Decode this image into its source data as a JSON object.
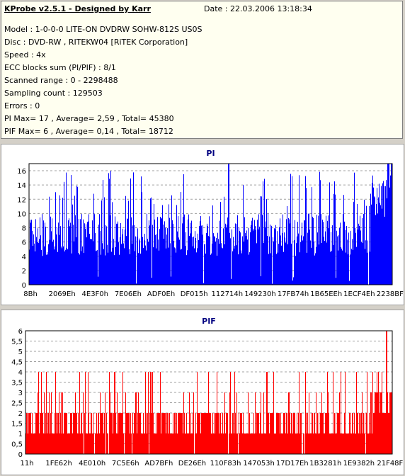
{
  "header": {
    "app_title": "KProbe v2.5.1 - Designed by Karr",
    "date": "Date : 22.03.2006 13:18:34",
    "lines": [
      "Model : 1-0-0-0 LITE-ON DVDRW SOHW-812S  US0S",
      "Disc : DVD-RW , RITEKW04 [RiTEK Corporation]",
      "Speed : 4x",
      "ECC blocks sum (PI/PIF) : 8/1",
      "Scanned range : 0 - 2298488",
      "Sampling count : 129503",
      "Errors : 0",
      "PI Max= 17 , Average= 2,59 , Total= 45380",
      "PIF Max= 6 , Average= 0,14 , Total= 18712"
    ]
  },
  "chart_data": [
    {
      "type": "bar",
      "title": "PI",
      "color": "#0000ff",
      "ylim": [
        0,
        17
      ],
      "yticks": [
        "0",
        "2",
        "4",
        "6",
        "8",
        "10",
        "12",
        "14",
        "16"
      ],
      "ytick_values": [
        0,
        2,
        4,
        6,
        8,
        10,
        12,
        14,
        16
      ],
      "xticks": [
        "8Bh",
        "2069Eh",
        "4E3F0h",
        "7E06Eh",
        "ADF0Eh",
        "DF015h",
        "112714h",
        "149230h",
        "17FB74h",
        "1B65EEh",
        "1ECF4Eh",
        "2238BFh"
      ],
      "grid": true,
      "max": 17,
      "average": 2.59,
      "profile": {
        "typical_range": [
          4,
          10
        ],
        "frequent_peaks": [
          11,
          16
        ],
        "peaks_at_max": [
          0.55,
          0.99,
          1.0
        ],
        "end_rise_from": 0.94
      }
    },
    {
      "type": "bar",
      "title": "PIF",
      "color": "#ff0000",
      "ylim": [
        0,
        6
      ],
      "yticks": [
        "0",
        "0,5",
        "1",
        "1,5",
        "2",
        "2,5",
        "3",
        "3,5",
        "4",
        "4,5",
        "5",
        "5,5",
        "6"
      ],
      "ytick_values": [
        0,
        0.5,
        1,
        1.5,
        2,
        2.5,
        3,
        3.5,
        4,
        4.5,
        5,
        5.5,
        6
      ],
      "xticks": [
        "11h",
        "1FE62h",
        "4E010h",
        "7C5E6h",
        "AD7BFh",
        "DE26Eh",
        "110F83h",
        "147053h",
        "17D17Eh",
        "1B3281h",
        "1E9382h",
        "21F48Fh"
      ],
      "grid": true,
      "max": 6,
      "average": 0.14,
      "profile": {
        "typical_range": [
          1,
          2
        ],
        "frequent_peaks": [
          3,
          4
        ],
        "peaks_at_max": [
          0.985
        ],
        "end_rise_from": 0.95
      }
    }
  ]
}
